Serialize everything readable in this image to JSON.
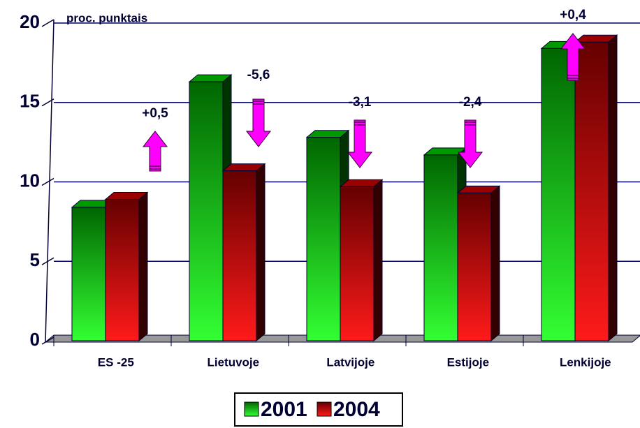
{
  "chart_data": {
    "type": "bar3d",
    "subtitle": "proc. punktais",
    "categories": [
      "ES -25",
      "Lietuvoje",
      "Latvijoje",
      "Estijoje",
      "Lenkijoje"
    ],
    "series": [
      {
        "name": "2001",
        "color": "#00cc00",
        "values": [
          8.4,
          16.3,
          12.8,
          11.7,
          18.4
        ]
      },
      {
        "name": "2004",
        "color": "#dd0000",
        "values": [
          8.9,
          10.7,
          9.7,
          9.3,
          18.8
        ]
      }
    ],
    "annotations": [
      "+0,5",
      "-5,6",
      "-3,1",
      "-2,4",
      "+0,4"
    ],
    "ylim": [
      0,
      20
    ],
    "yticks": [
      0,
      5,
      10,
      15,
      20
    ],
    "grid": true,
    "legend": "bottom"
  }
}
